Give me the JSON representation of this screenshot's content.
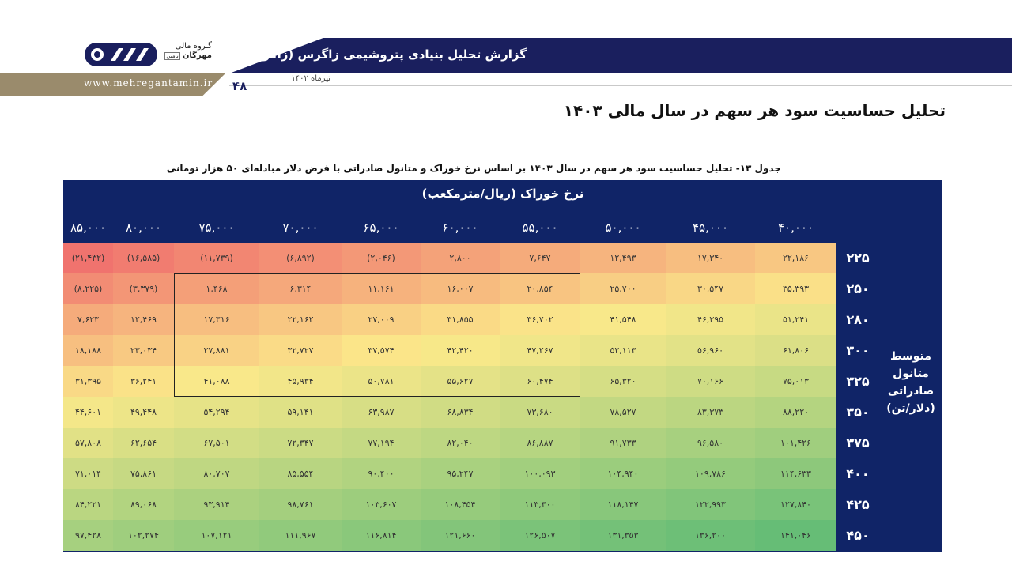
{
  "header": {
    "logo_line1": "گـروه مالی",
    "logo_line2": "مهرگان",
    "logo_badge": "تامین",
    "website": "www.mehregantamin.ir",
    "report_title": "گزارش تحلیل بنیادی پتروشیمی زاگرس (زاگرس)",
    "report_date": "تیرماه ۱۴۰۲",
    "page_number": "۴۸",
    "brand_color": "#1a1f5e",
    "accent_color": "#9a8b6c"
  },
  "main_heading": "تحلیل حساسیت سود هر سهم در سال مالی ۱۴۰۳",
  "table_caption": "جدول ۱۳- تحلیل حساسیت سود هر سهم در سال ۱۴۰۳ بر اساس نرخ خوراک و متانول صادراتی با فرض دلار مبادله‌ای ۵۰ هزار تومانی",
  "table": {
    "col_header_title": "نرخ خوراک (ریال/مترمکعب)",
    "row_axis_label": "متوسط متانول صادراتی (دلار/تن)",
    "columns": [
      "۴۰,۰۰۰",
      "۴۵,۰۰۰",
      "۵۰,۰۰۰",
      "۵۵,۰۰۰",
      "۶۰,۰۰۰",
      "۶۵,۰۰۰",
      "۷۰,۰۰۰",
      "۷۵,۰۰۰",
      "۸۰,۰۰۰",
      "۸۵,۰۰۰"
    ],
    "column_values": [
      40000,
      45000,
      50000,
      55000,
      60000,
      65000,
      70000,
      75000,
      80000,
      85000
    ],
    "rows": [
      "۲۲۵",
      "۲۵۰",
      "۲۸۰",
      "۳۰۰",
      "۳۲۵",
      "۳۵۰",
      "۳۷۵",
      "۴۰۰",
      "۴۲۵",
      "۴۵۰"
    ],
    "row_values": [
      225,
      250,
      280,
      300,
      325,
      350,
      375,
      400,
      425,
      450
    ],
    "cells": [
      [
        "۲۲,۱۸۶",
        "۱۷,۳۴۰",
        "۱۲,۴۹۳",
        "۷,۶۴۷",
        "۲,۸۰۰",
        "(۲,۰۴۶)",
        "(۶,۸۹۲)",
        "(۱۱,۷۳۹)",
        "(۱۶,۵۸۵)",
        "(۲۱,۴۳۲)"
      ],
      [
        "۳۵,۳۹۳",
        "۳۰,۵۴۷",
        "۲۵,۷۰۰",
        "۲۰,۸۵۴",
        "۱۶,۰۰۷",
        "۱۱,۱۶۱",
        "۶,۳۱۴",
        "۱,۴۶۸",
        "(۳,۳۷۹)",
        "(۸,۲۲۵)"
      ],
      [
        "۵۱,۲۴۱",
        "۴۶,۳۹۵",
        "۴۱,۵۴۸",
        "۳۶,۷۰۲",
        "۳۱,۸۵۵",
        "۲۷,۰۰۹",
        "۲۲,۱۶۲",
        "۱۷,۳۱۶",
        "۱۲,۴۶۹",
        "۷,۶۲۳"
      ],
      [
        "۶۱,۸۰۶",
        "۵۶,۹۶۰",
        "۵۲,۱۱۳",
        "۴۷,۲۶۷",
        "۴۲,۴۲۰",
        "۳۷,۵۷۴",
        "۳۲,۷۲۷",
        "۲۷,۸۸۱",
        "۲۳,۰۳۴",
        "۱۸,۱۸۸"
      ],
      [
        "۷۵,۰۱۳",
        "۷۰,۱۶۶",
        "۶۵,۳۲۰",
        "۶۰,۴۷۴",
        "۵۵,۶۲۷",
        "۵۰,۷۸۱",
        "۴۵,۹۳۴",
        "۴۱,۰۸۸",
        "۳۶,۲۴۱",
        "۳۱,۳۹۵"
      ],
      [
        "۸۸,۲۲۰",
        "۸۳,۳۷۳",
        "۷۸,۵۲۷",
        "۷۳,۶۸۰",
        "۶۸,۸۳۴",
        "۶۳,۹۸۷",
        "۵۹,۱۴۱",
        "۵۴,۲۹۴",
        "۴۹,۴۴۸",
        "۴۴,۶۰۱"
      ],
      [
        "۱۰۱,۴۲۶",
        "۹۶,۵۸۰",
        "۹۱,۷۳۳",
        "۸۶,۸۸۷",
        "۸۲,۰۴۰",
        "۷۷,۱۹۴",
        "۷۲,۳۴۷",
        "۶۷,۵۰۱",
        "۶۲,۶۵۴",
        "۵۷,۸۰۸"
      ],
      [
        "۱۱۴,۶۳۳",
        "۱۰۹,۷۸۶",
        "۱۰۴,۹۴۰",
        "۱۰۰,۰۹۳",
        "۹۵,۲۴۷",
        "۹۰,۴۰۰",
        "۸۵,۵۵۴",
        "۸۰,۷۰۷",
        "۷۵,۸۶۱",
        "۷۱,۰۱۴"
      ],
      [
        "۱۲۷,۸۴۰",
        "۱۲۲,۹۹۳",
        "۱۱۸,۱۴۷",
        "۱۱۳,۳۰۰",
        "۱۰۸,۴۵۴",
        "۱۰۳,۶۰۷",
        "۹۸,۷۶۱",
        "۹۳,۹۱۴",
        "۸۹,۰۶۸",
        "۸۴,۲۲۱"
      ],
      [
        "۱۴۱,۰۴۶",
        "۱۳۶,۲۰۰",
        "۱۳۱,۳۵۳",
        "۱۲۶,۵۰۷",
        "۱۲۱,۶۶۰",
        "۱۱۶,۸۱۴",
        "۱۱۱,۹۶۷",
        "۱۰۷,۱۲۱",
        "۱۰۲,۲۷۴",
        "۹۷,۴۲۸"
      ]
    ],
    "cell_values": [
      [
        22186,
        17340,
        12493,
        7647,
        2800,
        -2046,
        -6892,
        -11739,
        -16585,
        -21432
      ],
      [
        35393,
        30547,
        25700,
        20854,
        16007,
        11161,
        6314,
        1468,
        -3379,
        -8225
      ],
      [
        51241,
        46395,
        41548,
        36702,
        31855,
        27009,
        22162,
        17316,
        12469,
        7623
      ],
      [
        61806,
        56960,
        52113,
        47267,
        42420,
        37574,
        32727,
        27881,
        23034,
        18188
      ],
      [
        75013,
        70166,
        65320,
        60474,
        55627,
        50781,
        45934,
        41088,
        36241,
        31395
      ],
      [
        88220,
        83373,
        78527,
        73680,
        68834,
        63987,
        59141,
        54294,
        49448,
        44601
      ],
      [
        101426,
        96580,
        91733,
        86887,
        82040,
        77194,
        72347,
        67501,
        62654,
        57808
      ],
      [
        114633,
        109786,
        104940,
        100093,
        95247,
        90400,
        85554,
        80707,
        75861,
        71014
      ],
      [
        127840,
        122993,
        118147,
        113300,
        108454,
        103607,
        98761,
        93914,
        89068,
        84221
      ],
      [
        141046,
        136200,
        131353,
        126507,
        121660,
        116814,
        111967,
        107121,
        102274,
        97428
      ]
    ],
    "heatmap_colors": {
      "low": "#f0736e",
      "mid": "#fbe98a",
      "high": "#66bd76"
    }
  }
}
